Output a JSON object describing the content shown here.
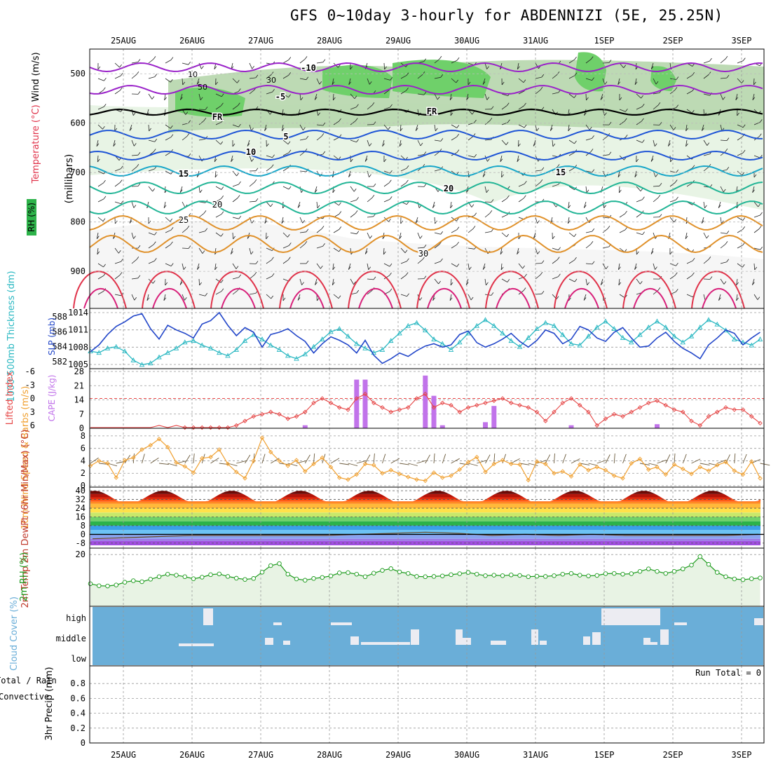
{
  "title": "GFS 0~10day 3-hourly for ABDENNIZI (5E, 25.25N)",
  "colors": {
    "rh_light": "#e6f3e2",
    "rh_mid": "#b9d8b0",
    "rh_dark": "#6fd06a",
    "temp_purple": "#9a22c9",
    "temp_blue": "#1f55d6",
    "temp_cyan": "#19a7c9",
    "temp_teal": "#22b596",
    "temp_orange": "#e0912a",
    "temp_red": "#e0334a",
    "slp": "#2246c9",
    "thickness": "#2ab8c2",
    "li": "#e64545",
    "cape": "#c173ea",
    "wind10m": "#f0a030",
    "rh2m": "#1a9a1a",
    "cloud": "#6aaed8",
    "cloud_gap": "#ececf2"
  },
  "chart_data": [
    {
      "type": "heatmap",
      "name": "upper-air",
      "title": "GFS 0~10day 3-hourly for ABDENNIZI (5E, 25.25N)",
      "x_day_labels": [
        "25AUG",
        "26AUG",
        "27AUG",
        "28AUG",
        "29AUG",
        "30AUG",
        "31AUG",
        "1SEP",
        "2SEP",
        "3SEP"
      ],
      "y_label_left": "RH (%)",
      "y_label_temp": "Temperature (°C)",
      "y_label_wind": "Wind (m/s)",
      "y_label_pressure": "(millibars)",
      "ylim": [
        450,
        975
      ],
      "y_ticks": [
        500,
        600,
        700,
        800,
        900
      ],
      "temperature_contour_labels": [
        "-10",
        "-5",
        "FR",
        "5",
        "10",
        "15",
        "20",
        "25",
        "30"
      ],
      "rh_contour_labels": [
        "10",
        "30",
        "50"
      ]
    },
    {
      "type": "line",
      "name": "slp-thickness",
      "ylabel_left": "1000-500mb Thickness (dm)",
      "ylabel_right": "SLP (mb)",
      "left_ticks": [
        582,
        584,
        586,
        588
      ],
      "right_ticks": [
        1005,
        1008,
        1011,
        1014
      ],
      "series": [
        {
          "name": "SLP (mb)",
          "values": [
            1007.2,
            1008.4,
            1010.2,
            1011.6,
            1012.4,
            1013.4,
            1013.8,
            1011.2,
            1009.4,
            1011.8,
            1011.0,
            1010.4,
            1009.6,
            1012.0,
            1012.6,
            1014.0,
            1011.8,
            1010.0,
            1011.4,
            1010.6,
            1008.0,
            1010.2,
            1010.6,
            1011.2,
            1010.0,
            1009.0,
            1007.0,
            1008.6,
            1009.8,
            1009.2,
            1008.4,
            1007.0,
            1009.2,
            1006.6,
            1005.2,
            1006.0,
            1007.0,
            1006.4,
            1007.4,
            1008.2,
            1008.6,
            1008.0,
            1008.4,
            1010.2,
            1010.8,
            1008.8,
            1008.0,
            1008.6,
            1009.4,
            1010.4,
            1009.0,
            1008.0,
            1009.2,
            1011.0,
            1010.4,
            1008.6,
            1009.4,
            1011.6,
            1011.0,
            1009.6,
            1009.0,
            1010.6,
            1011.4,
            1009.6,
            1008.0,
            1008.2,
            1009.6,
            1010.6,
            1009.0,
            1007.8,
            1007.0,
            1006.0,
            1008.4,
            1009.6,
            1011.0,
            1010.4,
            1008.4,
            1009.6,
            1010.6
          ]
        },
        {
          "name": "Thickness (dm)",
          "values": [
            583.4,
            583.2,
            583.8,
            584.0,
            583.4,
            582.2,
            581.6,
            581.8,
            582.6,
            583.2,
            583.8,
            584.6,
            584.8,
            584.2,
            583.8,
            583.2,
            582.8,
            583.6,
            584.8,
            585.6,
            585.0,
            584.2,
            583.6,
            582.8,
            582.4,
            583.0,
            584.0,
            585.0,
            586.0,
            586.4,
            585.4,
            584.4,
            583.8,
            583.2,
            583.6,
            584.8,
            585.8,
            586.8,
            587.2,
            586.2,
            585.0,
            584.4,
            583.6,
            584.6,
            585.8,
            586.8,
            587.6,
            586.8,
            585.8,
            584.8,
            584.0,
            585.2,
            586.4,
            587.2,
            586.8,
            585.6,
            584.4,
            584.2,
            585.4,
            586.6,
            587.4,
            586.4,
            585.2,
            584.6,
            585.6,
            586.6,
            587.4,
            586.6,
            585.4,
            584.6,
            585.4,
            586.6,
            587.6,
            587.0,
            586.2,
            585.0,
            584.6,
            584.2,
            585.0
          ]
        }
      ]
    },
    {
      "type": "bar",
      "name": "li-cape",
      "ylabel_left": "Lifted Index",
      "ylabel_right": "CAPE (J/kg)",
      "left_ticks": [
        "-6",
        "-3",
        "0",
        "3",
        "6"
      ],
      "right_ticks": [
        "0",
        "7",
        "14",
        "21",
        "28"
      ],
      "cape_bars": [
        {
          "step": 25,
          "value": 1.5
        },
        {
          "step": 31,
          "value": 24
        },
        {
          "step": 32,
          "value": 24
        },
        {
          "step": 39,
          "value": 26
        },
        {
          "step": 40,
          "value": 16
        },
        {
          "step": 41,
          "value": 1.5
        },
        {
          "step": 46,
          "value": 3
        },
        {
          "step": 47,
          "value": 11
        },
        {
          "step": 56,
          "value": 1.5
        },
        {
          "step": 66,
          "value": 2
        }
      ],
      "lifted_index": [
        7,
        7,
        7,
        7,
        7,
        7,
        7,
        7,
        6,
        7,
        6,
        7,
        7,
        6.5,
        7,
        7,
        6.5,
        6,
        5,
        4,
        3.5,
        3,
        3.5,
        4.5,
        4,
        3,
        1,
        0,
        1,
        2,
        2.5,
        0,
        -1,
        1,
        2,
        3,
        2.5,
        2,
        0,
        -1,
        2,
        1,
        1.5,
        3,
        2,
        1.5,
        1,
        0.5,
        0,
        1,
        1.5,
        2,
        3,
        5,
        3,
        1,
        0,
        1.5,
        3,
        6,
        4.5,
        3.5,
        4,
        3,
        2,
        1,
        0.5,
        1.5,
        2.5,
        3,
        5,
        6,
        4,
        3,
        2,
        2.5,
        2.5,
        4,
        5.5
      ]
    },
    {
      "type": "line",
      "name": "wind10m",
      "ylabel": "10m Wind Speed & Barbs (m/s)",
      "y_ticks": [
        0,
        2,
        4,
        6,
        8
      ],
      "ylim": [
        0,
        9
      ],
      "values": [
        3.2,
        4,
        3.6,
        1.3,
        4.1,
        4.5,
        5.8,
        6.5,
        7.5,
        6.2,
        3.7,
        3.1,
        2.1,
        4.4,
        4.6,
        5.8,
        3.5,
        2.2,
        1.2,
        4.0,
        7.7,
        5.4,
        4.0,
        3.2,
        4.1,
        2.3,
        3.5,
        4.5,
        3.0,
        1.3,
        1.0,
        1.8,
        3.5,
        3.3,
        2.0,
        2.5,
        1.9,
        1.4,
        1.0,
        0.8,
        2.1,
        1.3,
        1.6,
        2.6,
        3.8,
        4.6,
        2.2,
        3.5,
        4.1,
        3.5,
        3.4,
        0.9,
        3.9,
        3.5,
        2.0,
        2.3,
        1.5,
        3.4,
        2.5,
        3.0,
        2.5,
        1.6,
        1.2,
        3.6,
        4.3,
        2.6,
        3.0,
        1.8,
        3.4,
        2.7,
        1.9,
        3.0,
        2.4,
        3.3,
        3.8,
        2.4,
        1.8,
        3.9,
        1.2
      ]
    },
    {
      "type": "area",
      "name": "2m-temp",
      "ylabel": "2m Temp 2m DewPt (6hr Min/Max) (°C)",
      "y_ticks": [
        -8,
        0,
        8,
        16,
        24,
        32,
        40
      ],
      "tick_labels": [
        "-8",
        "0",
        "8",
        "16",
        "24",
        "32",
        "40"
      ],
      "ylim": [
        -10,
        42
      ],
      "temp_max": [
        40,
        40,
        40,
        40,
        40,
        40,
        40,
        40,
        40
      ],
      "temp_min": [
        28,
        28,
        28,
        28,
        28,
        28,
        28,
        28,
        28,
        28
      ],
      "dewpoint": [
        -4,
        -3,
        -2,
        -1,
        -1,
        -1,
        -1,
        -1,
        0,
        1,
        2,
        1,
        -1,
        0,
        -1,
        0,
        -1,
        -1,
        -1,
        -1,
        0
      ]
    },
    {
      "type": "line",
      "name": "2m-rh",
      "ylabel": "2m RH (%)",
      "y_ticks": [
        20
      ],
      "ylim": [
        0,
        22
      ],
      "values": [
        8.4,
        7.6,
        7.5,
        7.9,
        9,
        9.6,
        9.2,
        10.2,
        11.2,
        12.2,
        11.8,
        11.2,
        10.4,
        11,
        12,
        12.3,
        11.3,
        10.6,
        10.1,
        10.5,
        13,
        15.6,
        16.4,
        12.2,
        10.3,
        9.8,
        10.5,
        10.9,
        11.5,
        12.7,
        12.8,
        12.2,
        11.2,
        12.6,
        13.7,
        14.4,
        13.1,
        12.5,
        11.3,
        11.2,
        11.3,
        11.5,
        12,
        12.4,
        12.9,
        12.2,
        11.6,
        11.8,
        11.6,
        11.9,
        11.7,
        11.2,
        11.4,
        11.3,
        11.6,
        12.2,
        12.5,
        11.8,
        11.5,
        11.7,
        12.4,
        12.5,
        12.2,
        12.4,
        13.3,
        14.3,
        13.3,
        12.5,
        13.3,
        14.3,
        15.8,
        19.2,
        16.1,
        12.9,
        11.2,
        10.3,
        10,
        10.4,
        10.7
      ]
    },
    {
      "type": "heatmap",
      "name": "cloud-cover",
      "ylabel": "Cloud Cover (%)",
      "row_labels": [
        "high",
        "middle",
        "low"
      ]
    },
    {
      "type": "bar",
      "name": "precip",
      "ylabel": "3hr Precip (mm)",
      "ylabel_left": "Total / Rain Convective",
      "y_ticks": [
        0,
        0.2,
        0.4,
        0.6,
        0.8
      ],
      "tick_labels": [
        "0",
        "0.2",
        "0.4",
        "0.6",
        "0.8"
      ],
      "ylim": [
        0,
        1
      ],
      "run_total": "Run Total = 0"
    }
  ]
}
